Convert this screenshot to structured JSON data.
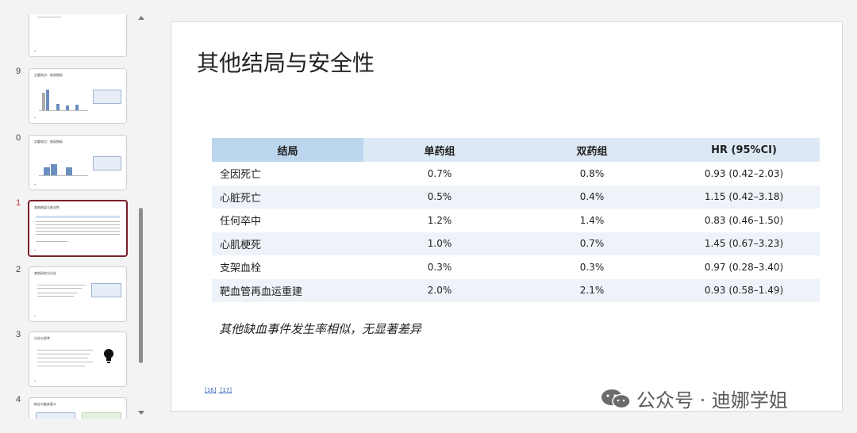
{
  "thumbnails": [
    {
      "number": "",
      "title": ""
    },
    {
      "number": "9",
      "title": "主要终点：结局指标"
    },
    {
      "number": "0",
      "title": "次要终点：结局指标"
    },
    {
      "number": "1",
      "title": "其他结局与安全性",
      "active": true
    },
    {
      "number": "2",
      "title": "其他研究与讨论"
    },
    {
      "number": "3",
      "title": "讨论与思考"
    },
    {
      "number": "4",
      "title": "结论与临床意义"
    }
  ],
  "slide": {
    "title": "其他结局与安全性",
    "table": {
      "headers": [
        "结局",
        "单药组",
        "双药组",
        "HR (95%CI)"
      ],
      "rows": [
        [
          "全因死亡",
          "0.7%",
          "0.8%",
          "0.93 (0.42–2.03)"
        ],
        [
          "心脏死亡",
          "0.5%",
          "0.4%",
          "1.15 (0.42–3.18)"
        ],
        [
          "任何卒中",
          "1.2%",
          "1.4%",
          "0.83 (0.46–1.50)"
        ],
        [
          "心肌梗死",
          "1.0%",
          "0.7%",
          "1.45 (0.67–3.23)"
        ],
        [
          "支架血栓",
          "0.3%",
          "0.3%",
          "0.97 (0.28–3.40)"
        ],
        [
          "靶血管再血运重建",
          "2.0%",
          "2.1%",
          "0.93 (0.58–1.49)"
        ]
      ]
    },
    "footnote": "其他缺血事件发生率相似，无显著差异",
    "refs": [
      "[16]",
      "[17]"
    ]
  },
  "watermark": "公众号 · 迪娜学姐",
  "colors": {
    "header": "#dce9f5",
    "header_first": "#bcd6ee",
    "row_alt": "#eef3f9",
    "active_thumb": "#7a1f2b"
  }
}
